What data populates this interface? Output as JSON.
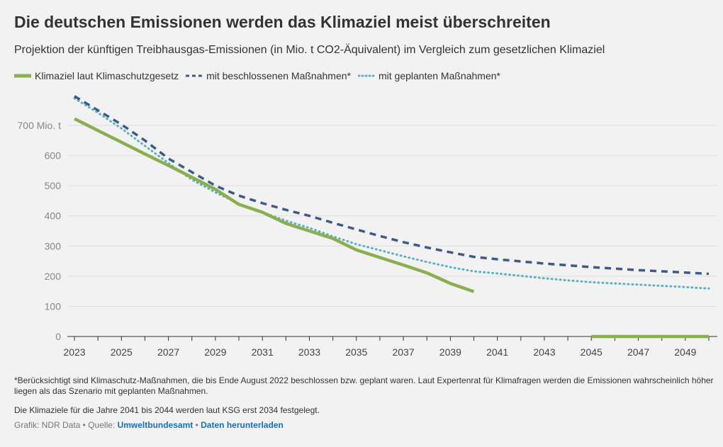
{
  "header": {
    "title": "Die deutschen Emissionen werden das Klimaziel meist überschreiten",
    "subtitle": "Projektion der künftigen Treibhausgas-Emissionen (in Mio. t CO2-Äquivalent) im Vergleich zum gesetzlichen Klimaziel"
  },
  "legend": [
    {
      "label": "Klimaziel laut Klimaschutzgesetz",
      "color": "#8aaf50",
      "style": "solid"
    },
    {
      "label": "mit beschlossenen Maßnahmen*",
      "color": "#3d5a8a",
      "style": "dashed"
    },
    {
      "label": "mit geplanten Maßnahmen*",
      "color": "#5ab3c3",
      "style": "dotted"
    }
  ],
  "chart_data": {
    "type": "line",
    "title": "Die deutschen Emissionen werden das Klimaziel meist überschreiten",
    "ylim": [
      0,
      700
    ],
    "xlim": [
      2023,
      2050
    ],
    "yticks": [
      0,
      100,
      200,
      300,
      400,
      500,
      600,
      700
    ],
    "ytick_labels": [
      "0",
      "100",
      "200",
      "300",
      "400",
      "500",
      "600",
      "700 Mio. t"
    ],
    "xticks": [
      2023,
      2025,
      2027,
      2029,
      2031,
      2033,
      2035,
      2037,
      2039,
      2041,
      2043,
      2045,
      2047,
      2049
    ],
    "xtick_labels": [
      "2023",
      "2025",
      "2027",
      "2029",
      "2031",
      "2033",
      "2035",
      "2037",
      "2039",
      "2041",
      "2043",
      "2045",
      "2047",
      "2049"
    ],
    "grid": "horizontal",
    "series": [
      {
        "name": "Klimaziel laut Klimaschutzgesetz",
        "color": "#8aaf50",
        "style": "solid",
        "segments": [
          {
            "x": [
              2023,
              2024,
              2025,
              2026,
              2027,
              2028,
              2029,
              2030,
              2031,
              2032,
              2033,
              2034,
              2035,
              2036,
              2037,
              2038,
              2039,
              2040
            ],
            "y": [
              722,
              683,
              644,
              605,
              567,
              528,
              488,
              438,
              412,
              375,
              350,
              325,
              287,
              262,
              237,
              211,
              176,
              149
            ]
          },
          {
            "x": [
              2045,
              2050
            ],
            "y": [
              0,
              0
            ]
          }
        ]
      },
      {
        "name": "mit beschlossenen Maßnahmen*",
        "color": "#3d5a8a",
        "style": "dashed",
        "segments": [
          {
            "x": [
              2023,
              2024,
              2025,
              2026,
              2027,
              2028,
              2029,
              2030,
              2031,
              2032,
              2033,
              2034,
              2035,
              2036,
              2037,
              2038,
              2039,
              2040,
              2041,
              2042,
              2043,
              2044,
              2045,
              2046,
              2047,
              2048,
              2049,
              2050
            ],
            "y": [
              797,
              750,
              703,
              650,
              590,
              545,
              500,
              467,
              442,
              420,
              400,
              377,
              355,
              333,
              313,
              295,
              279,
              264,
              256,
              249,
              242,
              236,
              230,
              225,
              220,
              216,
              212,
              208
            ]
          }
        ]
      },
      {
        "name": "mit geplanten Maßnahmen*",
        "color": "#5ab3c3",
        "style": "dotted",
        "segments": [
          {
            "x": [
              2023,
              2024,
              2025,
              2026,
              2027,
              2028,
              2029,
              2030,
              2031,
              2032,
              2033,
              2034,
              2035,
              2036,
              2037,
              2038,
              2039,
              2040,
              2041,
              2042,
              2043,
              2044,
              2045,
              2046,
              2047,
              2048,
              2049,
              2050
            ],
            "y": [
              790,
              742,
              690,
              632,
              575,
              520,
              478,
              440,
              412,
              384,
              360,
              332,
              306,
              286,
              266,
              247,
              230,
              216,
              209,
              201,
              193,
              186,
              180,
              176,
              172,
              168,
              164,
              159
            ]
          }
        ]
      }
    ]
  },
  "footnotes": {
    "note1": "*Berücksichtigt sind Klimaschutz-Maßnahmen, die bis Ende August 2022 beschlossen bzw. geplant waren. Laut Expertenrat für Klimafragen werden die Emissionen wahrscheinlich höher liegen als das Szenario mit geplanten Maßnahmen.",
    "note2": "Die Klimaziele für die Jahre 2041 bis 2044 werden laut KSG erst 2034 festgelegt."
  },
  "source": {
    "prefix": "Grafik: NDR Data • Quelle: ",
    "link_source": "Umweltbundesamt",
    "separator": " • ",
    "link_download": "Daten herunterladen"
  }
}
